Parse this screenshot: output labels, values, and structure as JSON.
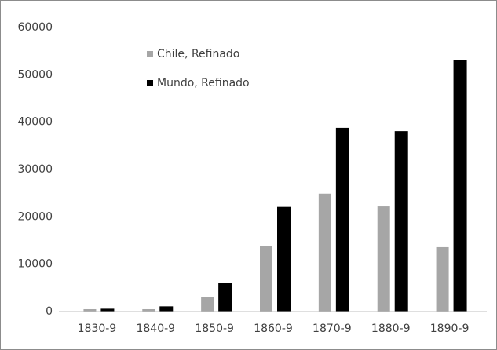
{
  "chart_data": {
    "type": "bar",
    "categories": [
      "1830-9",
      "1840-9",
      "1850-9",
      "1860-9",
      "1870-9",
      "1880-9",
      "1890-9"
    ],
    "series": [
      {
        "name": "Chile, Refinado",
        "color": "#a6a6a6",
        "values": [
          500,
          500,
          3100,
          13900,
          24900,
          22200,
          13600
        ]
      },
      {
        "name": "Mundo, Refinado",
        "color": "#000000",
        "values": [
          600,
          1100,
          6100,
          22100,
          38800,
          38100,
          53100
        ]
      }
    ],
    "ylim": [
      0,
      60000
    ],
    "yticks": [
      0,
      10000,
      20000,
      30000,
      40000,
      50000,
      60000
    ],
    "grid": false,
    "legend": "upper left"
  }
}
